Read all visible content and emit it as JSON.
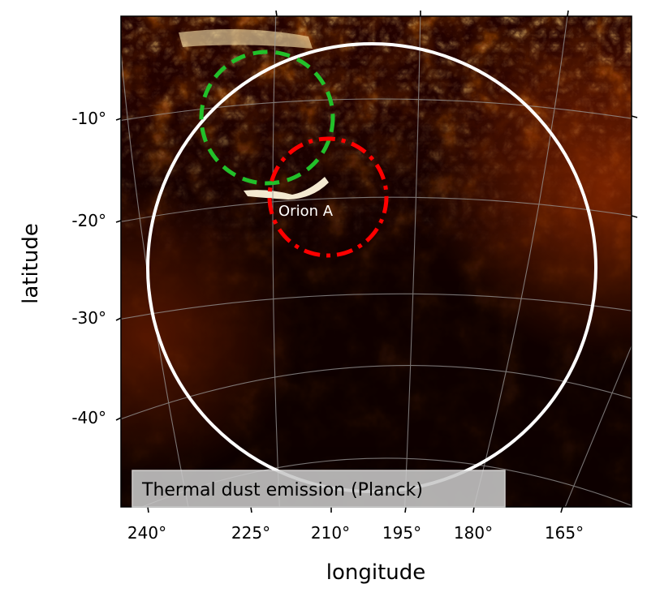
{
  "map": {
    "caption": "Thermal dust emission (Planck)",
    "xlabel": "longitude",
    "ylabel": "latitude",
    "lon_ticks": [
      "240°",
      "225°",
      "210°",
      "195°",
      "180°",
      "165°"
    ],
    "lat_ticks": [
      "-10°",
      "-20°",
      "-30°",
      "-40°"
    ],
    "region_label": "Orion A",
    "colormap": [
      "#000000",
      "#3a0400",
      "#8a1400",
      "#d24a00",
      "#f59a12",
      "#fff2c8"
    ],
    "colors": {
      "large_circle": "#ffffff",
      "green_circle": "#22c02a",
      "red_circle": "#ff0000",
      "grid": "#9a9a9a",
      "caption_box": "#c8c8c8"
    }
  }
}
